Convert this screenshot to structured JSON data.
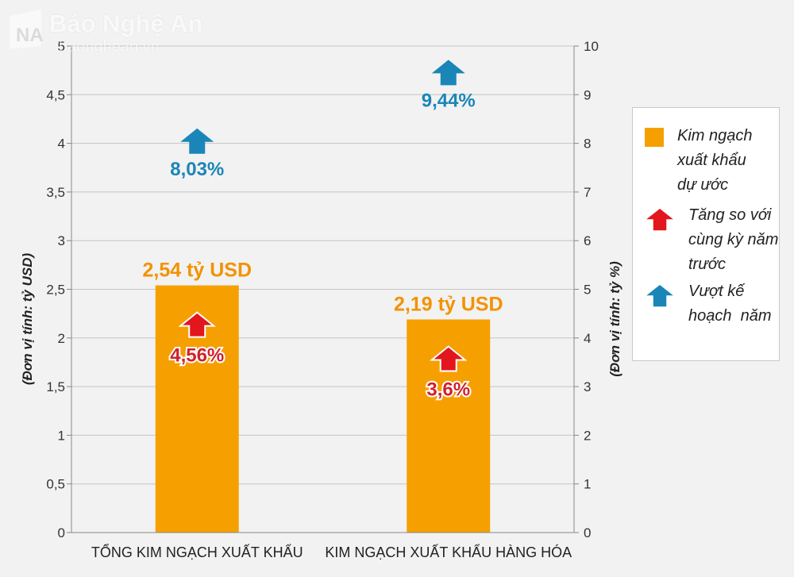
{
  "logo": {
    "name": "Báo Nghệ An",
    "site": "baonghean.vn"
  },
  "colors": {
    "bar": "#f5a000",
    "value_label": "#f39200",
    "up_red": "#e3151d",
    "up_blue": "#1a86b8",
    "grid": "#c4c4c4"
  },
  "chart_data": {
    "type": "bar",
    "categories": [
      "TỔNG KIM NGẠCH XUẤT KHẨU",
      "KIM NGẠCH XUẤT KHẨU HÀNG HÓA"
    ],
    "series": [
      {
        "name": "Kim ngạch xuất khẩu dự ước",
        "values": [
          2.54,
          2.19
        ],
        "unit": "tỷ USD",
        "axis": "left"
      }
    ],
    "value_labels": [
      "2,54 tỷ USD",
      "2,19 tỷ USD"
    ],
    "growth_vs_last_year": {
      "name": "Tăng so với cùng kỳ năm trước",
      "values": [
        4.56,
        3.6
      ],
      "labels": [
        "4,56%",
        "3,6%"
      ]
    },
    "exceed_plan": {
      "name": "Vượt kế hoạch năm",
      "values": [
        8.03,
        9.44
      ],
      "labels": [
        "8,03%",
        "9,44%"
      ],
      "axis": "right"
    },
    "ylabel": "(Đơn vị tính: tỷ USD)",
    "y2label": "(Đơn vị tính: tỷ %)",
    "ylim": [
      0,
      5
    ],
    "y2lim": [
      0,
      10
    ],
    "yticks": [
      "0",
      "0,5",
      "1",
      "1,5",
      "2",
      "2,5",
      "3",
      "3,5",
      "4",
      "4,5",
      "5"
    ],
    "y2ticks": [
      "0",
      "1",
      "2",
      "3",
      "4",
      "5",
      "6",
      "7",
      "8",
      "9",
      "10"
    ],
    "grid": true,
    "legend": {
      "position": "right",
      "items": [
        {
          "type": "bar",
          "lines": [
            "Kim ngạch",
            "xuất khẩu",
            "dự ước"
          ]
        },
        {
          "type": "arrow-red",
          "lines": [
            "Tăng so với",
            "cùng kỳ năm",
            "trước"
          ]
        },
        {
          "type": "arrow-blue",
          "lines": [
            "Vượt kế",
            "hoạch  năm"
          ]
        }
      ]
    }
  }
}
